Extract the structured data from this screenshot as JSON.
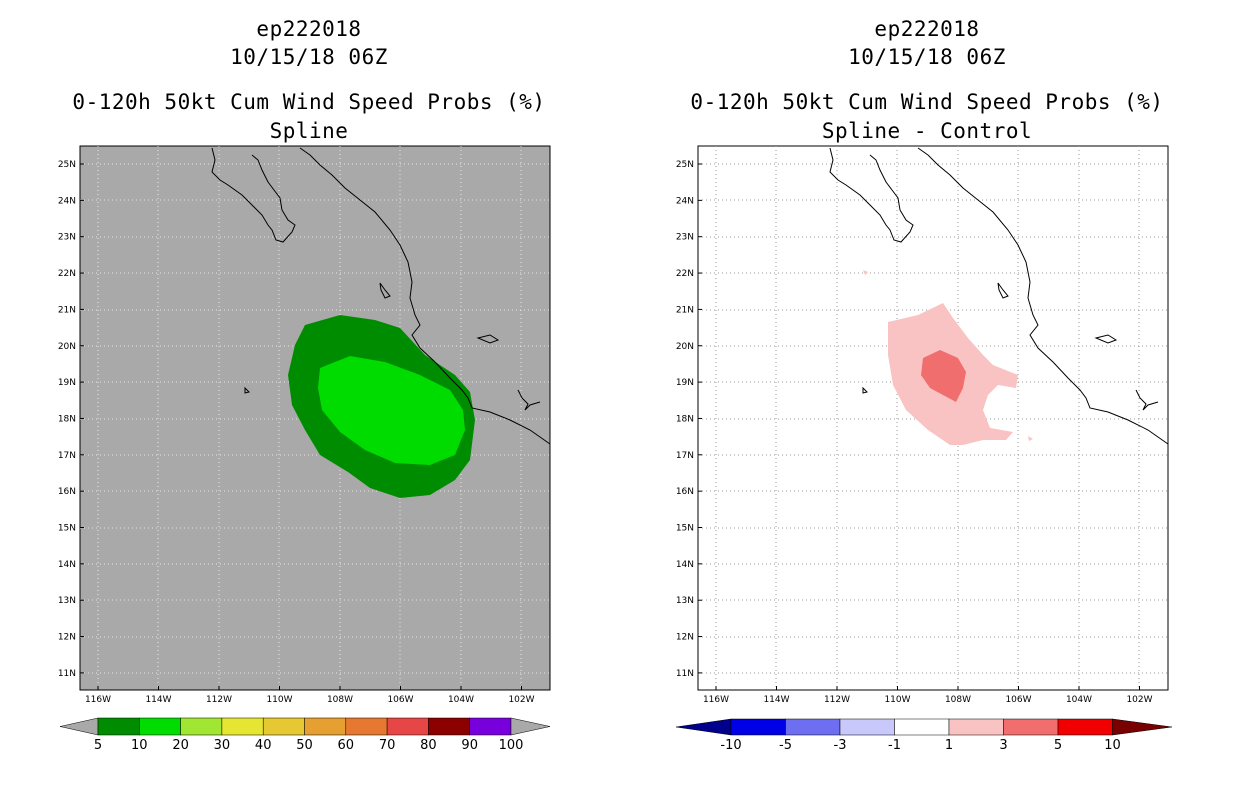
{
  "left": {
    "title_storm": "ep222018",
    "title_time": "10/15/18 06Z",
    "title_product": "0-120h 50kt Cum Wind Speed Probs (%)",
    "title_method": "Spline",
    "background_color": "#a9a9a9",
    "lat_labels": [
      "25N",
      "24N",
      "23N",
      "22N",
      "21N",
      "20N",
      "19N",
      "18N",
      "17N",
      "16N",
      "15N",
      "14N",
      "13N",
      "12N",
      "11N"
    ],
    "lon_labels": [
      "116W",
      "114W",
      "112W",
      "110W",
      "108W",
      "106W",
      "104W",
      "102W"
    ],
    "colorbar": {
      "colors": [
        "#008c00",
        "#00dc00",
        "#a0e632",
        "#e6e632",
        "#e6c832",
        "#e6a032",
        "#e67832",
        "#e64646",
        "#8c0000",
        "#7800dc"
      ],
      "labels": [
        "5",
        "10",
        "20",
        "30",
        "40",
        "50",
        "60",
        "70",
        "80",
        "90",
        "100"
      ]
    }
  },
  "right": {
    "title_storm": "ep222018",
    "title_time": "10/15/18 06Z",
    "title_product": "0-120h 50kt Cum Wind Speed Probs (%)",
    "title_method": "Spline - Control",
    "background_color": "#ffffff",
    "lat_labels": [
      "25N",
      "24N",
      "23N",
      "22N",
      "21N",
      "20N",
      "19N",
      "18N",
      "17N",
      "16N",
      "15N",
      "14N",
      "13N",
      "12N",
      "11N"
    ],
    "lon_labels": [
      "116W",
      "114W",
      "112W",
      "110W",
      "108W",
      "106W",
      "104W",
      "102W"
    ],
    "colorbar": {
      "colors": [
        "#0000e6",
        "#6e6ef0",
        "#c8c8fa",
        "#ffffff",
        "#fac3c3",
        "#f06e6e",
        "#f00000"
      ],
      "end_low": "#00008c",
      "end_high": "#780000",
      "labels": [
        "-10",
        "-5",
        "-3",
        "-1",
        "1",
        "3",
        "5",
        "10"
      ]
    }
  }
}
